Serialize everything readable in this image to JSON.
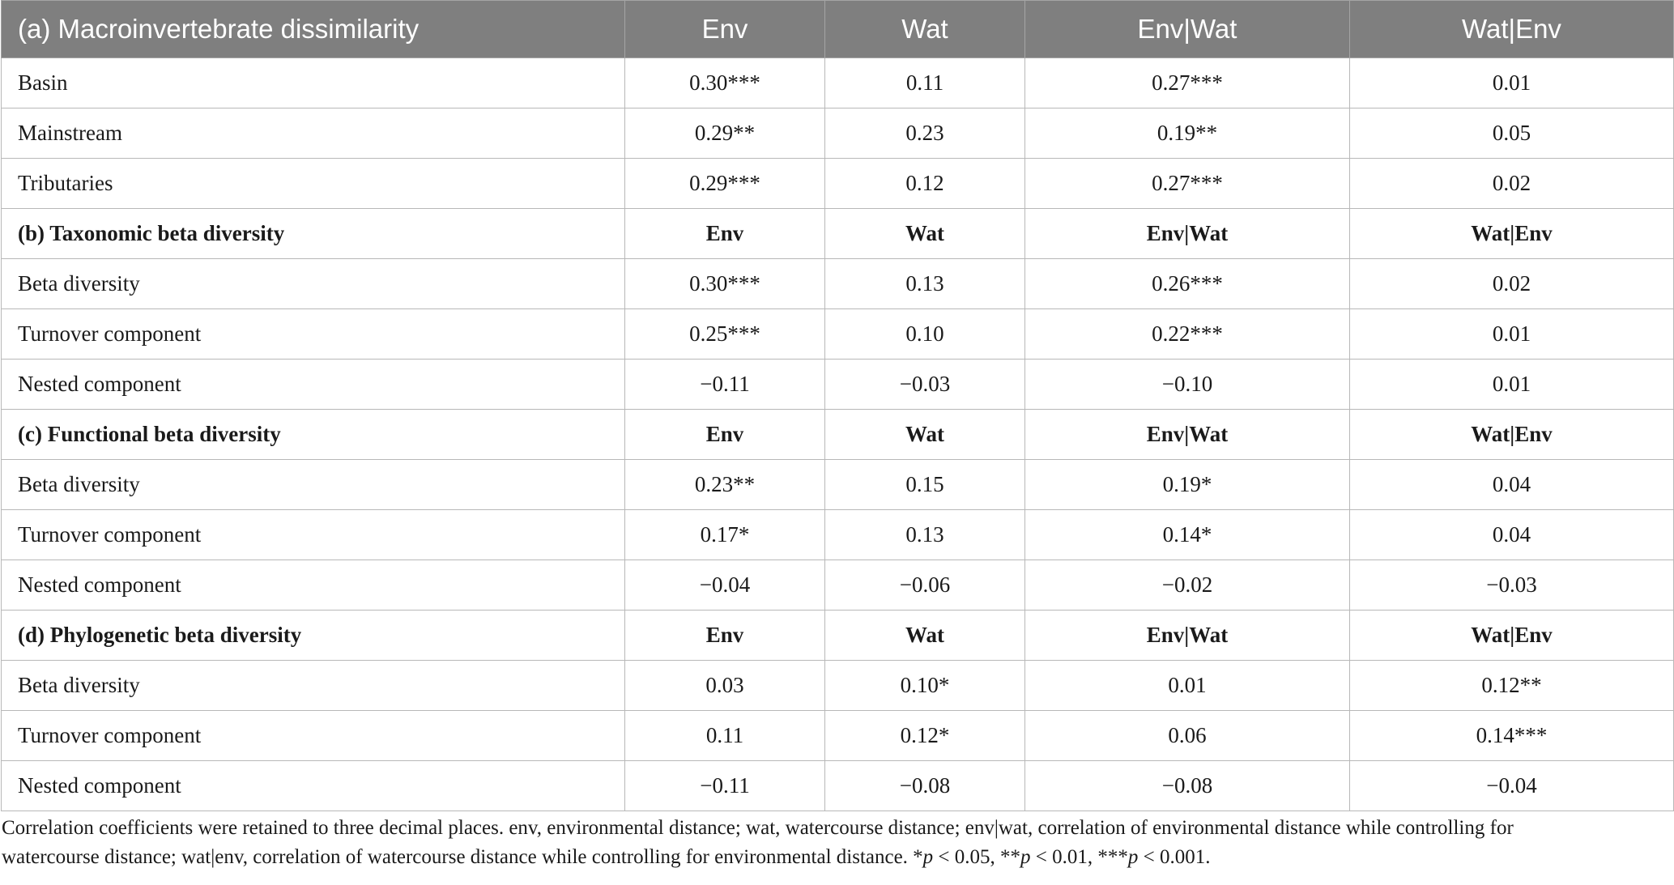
{
  "header": {
    "title": "(a) Macroinvertebrate dissimilarity",
    "cols": [
      "Env",
      "Wat",
      "Env|Wat",
      "Wat|Env"
    ]
  },
  "section_a": {
    "rows": [
      {
        "label": "Basin",
        "env": "0.30***",
        "wat": "0.11",
        "env_wat": "0.27***",
        "wat_env": "0.01"
      },
      {
        "label": "Mainstream",
        "env": "0.29**",
        "wat": "0.23",
        "env_wat": "0.19**",
        "wat_env": "0.05"
      },
      {
        "label": "Tributaries",
        "env": "0.29***",
        "wat": "0.12",
        "env_wat": "0.27***",
        "wat_env": "0.02"
      }
    ]
  },
  "section_b": {
    "title": "(b) Taxonomic beta diversity",
    "cols": [
      "Env",
      "Wat",
      "Env|Wat",
      "Wat|Env"
    ],
    "rows": [
      {
        "label": "Beta diversity",
        "env": "0.30***",
        "wat": "0.13",
        "env_wat": "0.26***",
        "wat_env": "0.02"
      },
      {
        "label": "Turnover component",
        "env": "0.25***",
        "wat": "0.10",
        "env_wat": "0.22***",
        "wat_env": "0.01"
      },
      {
        "label": "Nested component",
        "env": "−0.11",
        "wat": "−0.03",
        "env_wat": "−0.10",
        "wat_env": "0.01"
      }
    ]
  },
  "section_c": {
    "title": "(c) Functional beta diversity",
    "cols": [
      "Env",
      "Wat",
      "Env|Wat",
      "Wat|Env"
    ],
    "rows": [
      {
        "label": "Beta diversity",
        "env": "0.23**",
        "wat": "0.15",
        "env_wat": "0.19*",
        "wat_env": "0.04"
      },
      {
        "label": "Turnover component",
        "env": "0.17*",
        "wat": "0.13",
        "env_wat": "0.14*",
        "wat_env": "0.04"
      },
      {
        "label": "Nested component",
        "env": "−0.04",
        "wat": "−0.06",
        "env_wat": "−0.02",
        "wat_env": "−0.03"
      }
    ]
  },
  "section_d": {
    "title": "(d) Phylogenetic beta diversity",
    "cols": [
      "Env",
      "Wat",
      "Env|Wat",
      "Wat|Env"
    ],
    "rows": [
      {
        "label": "Beta diversity",
        "env": "0.03",
        "wat": "0.10*",
        "env_wat": "0.01",
        "wat_env": "0.12**"
      },
      {
        "label": "Turnover component",
        "env": "0.11",
        "wat": "0.12*",
        "env_wat": "0.06",
        "wat_env": "0.14***"
      },
      {
        "label": "Nested component",
        "env": "−0.11",
        "wat": "−0.08",
        "env_wat": "−0.08",
        "wat_env": "−0.04"
      }
    ]
  },
  "footnote": {
    "line1": "Correlation coefficients were retained to three decimal places. env, environmental distance; wat, watercourse distance; env|wat, correlation of environmental distance while controlling for",
    "line2_text": "watercourse distance; wat|env, correlation of watercourse distance while controlling for environmental distance. ",
    "sig1_stars": "*",
    "sig1_p": "p",
    "sig1_rest": " < 0.05, ",
    "sig2_stars": "**",
    "sig2_p": "p",
    "sig2_rest": " < 0.01, ",
    "sig3_stars": "***",
    "sig3_p": "p",
    "sig3_rest": " < 0.001."
  }
}
